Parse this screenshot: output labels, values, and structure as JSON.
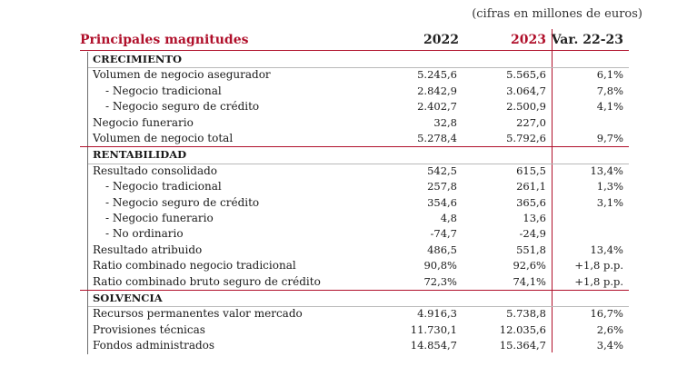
{
  "note": "(cifras en millones de euros)",
  "header": {
    "title": "Principales magnitudes",
    "col_2022": "2022",
    "col_2023": "2023",
    "col_var": "Var. 22-23"
  },
  "sections": [
    {
      "title": "CRECIMIENTO",
      "rows": [
        {
          "label": "Volumen de negocio asegurador",
          "v2022": "5.245,6",
          "v2023": "5.565,6",
          "var": "6,1%",
          "sub": false
        },
        {
          "label": "- Negocio tradicional",
          "v2022": "2.842,9",
          "v2023": "3.064,7",
          "var": "7,8%",
          "sub": true
        },
        {
          "label": "- Negocio seguro de crédito",
          "v2022": "2.402,7",
          "v2023": "2.500,9",
          "var": "4,1%",
          "sub": true
        },
        {
          "label": "Negocio funerario",
          "v2022": "32,8",
          "v2023": "227,0",
          "var": "",
          "sub": false
        },
        {
          "label": "Volumen de negocio total",
          "v2022": "5.278,4",
          "v2023": "5.792,6",
          "var": "9,7%",
          "sub": false
        }
      ]
    },
    {
      "title": "RENTABILIDAD",
      "rows": [
        {
          "label": "Resultado consolidado",
          "v2022": "542,5",
          "v2023": "615,5",
          "var": "13,4%",
          "sub": false
        },
        {
          "label": "- Negocio tradicional",
          "v2022": "257,8",
          "v2023": "261,1",
          "var": "1,3%",
          "sub": true
        },
        {
          "label": "- Negocio seguro de crédito",
          "v2022": "354,6",
          "v2023": "365,6",
          "var": "3,1%",
          "sub": true
        },
        {
          "label": "- Negocio funerario",
          "v2022": "4,8",
          "v2023": "13,6",
          "var": "",
          "sub": true
        },
        {
          "label": "- No ordinario",
          "v2022": "-74,7",
          "v2023": "-24,9",
          "var": "",
          "sub": true
        },
        {
          "label": "Resultado atribuido",
          "v2022": "486,5",
          "v2023": "551,8",
          "var": "13,4%",
          "sub": false
        },
        {
          "label": "Ratio combinado negocio tradicional",
          "v2022": "90,8%",
          "v2023": "92,6%",
          "var": "+1,8 p.p.",
          "sub": false
        },
        {
          "label": "Ratio combinado bruto seguro de crédito",
          "v2022": "72,3%",
          "v2023": "74,1%",
          "var": "+1,8 p.p.",
          "sub": false
        }
      ]
    },
    {
      "title": "SOLVENCIA",
      "rows": [
        {
          "label": "Recursos permanentes valor mercado",
          "v2022": "4.916,3",
          "v2023": "5.738,8",
          "var": "16,7%",
          "sub": false
        },
        {
          "label": "Provisiones técnicas",
          "v2022": "11.730,1",
          "v2023": "12.035,6",
          "var": "2,6%",
          "sub": false
        },
        {
          "label": "Fondos administrados",
          "v2022": "14.854,7",
          "v2023": "15.364,7",
          "var": "3,4%",
          "sub": false
        }
      ]
    }
  ]
}
